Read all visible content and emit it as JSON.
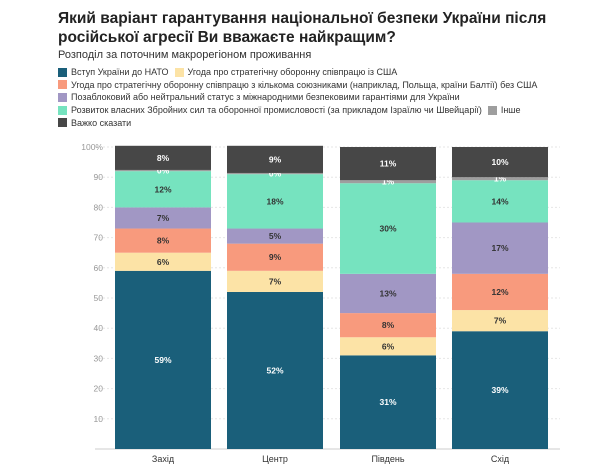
{
  "chart_data": {
    "type": "bar",
    "stacked": true,
    "title": "Який варіант гарантування національної безпеки України після російської агресії Ви вважаєте найкращим?",
    "subtitle": "Розподіл за поточним макрорегіоном проживання",
    "categories": [
      "Захід",
      "Центр",
      "Південь",
      "Схід"
    ],
    "ylim": [
      0,
      100
    ],
    "yticks": [
      10,
      20,
      30,
      40,
      50,
      60,
      70,
      80,
      90,
      100
    ],
    "ytick_labels": [
      "10",
      "20",
      "30",
      "40",
      "50",
      "60",
      "70",
      "80",
      "90",
      "100%"
    ],
    "grid": true,
    "legend_position": "top",
    "series": [
      {
        "name": "Вступ України до НАТО",
        "color": "#1a5f7a",
        "values": [
          59,
          52,
          31,
          39
        ],
        "labels": [
          "59%",
          "52%",
          "31%",
          "39%"
        ],
        "label_color": "#ffffff"
      },
      {
        "name": "Угода про стратегічну оборонну співпрацю із США",
        "color": "#fce3a6",
        "values": [
          6,
          7,
          6,
          7
        ],
        "labels": [
          "6%",
          "7%",
          "6%",
          "7%"
        ],
        "label_color": "#333333"
      },
      {
        "name": "Угода про стратегічну оборонну співпрацю з кількома союзниками (наприклад, Польща, країни Балтії) без США",
        "color": "#f89a7d",
        "values": [
          8,
          9,
          8,
          12
        ],
        "labels": [
          "8%",
          "9%",
          "8%",
          "12%"
        ],
        "label_color": "#333333"
      },
      {
        "name": "Позаблоковий або нейтральний статус з міжнародними безпековими гарантіями для України",
        "color": "#a197c4",
        "values": [
          7,
          5,
          13,
          17
        ],
        "labels": [
          "7%",
          "5%",
          "13%",
          "17%"
        ],
        "label_color": "#333333"
      },
      {
        "name": "Розвиток власних Збройних сил та оборонної промисловості (за прикладом Ізраїлю чи Швейцарії)",
        "color": "#76e3bf",
        "values": [
          12,
          18,
          30,
          14
        ],
        "labels": [
          "12%",
          "18%",
          "30%",
          "14%"
        ],
        "label_color": "#333333"
      },
      {
        "name": "Інше",
        "color": "#9e9e9e",
        "values": [
          0.4,
          0.4,
          1,
          1
        ],
        "labels": [
          "0%",
          "0%",
          "1%",
          "1%"
        ],
        "label_color": "#ffffff"
      },
      {
        "name": "Важко сказати",
        "color": "#474747",
        "values": [
          8,
          9,
          11,
          10
        ],
        "labels": [
          "8%",
          "9%",
          "11%",
          "10%"
        ],
        "label_color": "#ffffff"
      }
    ]
  }
}
